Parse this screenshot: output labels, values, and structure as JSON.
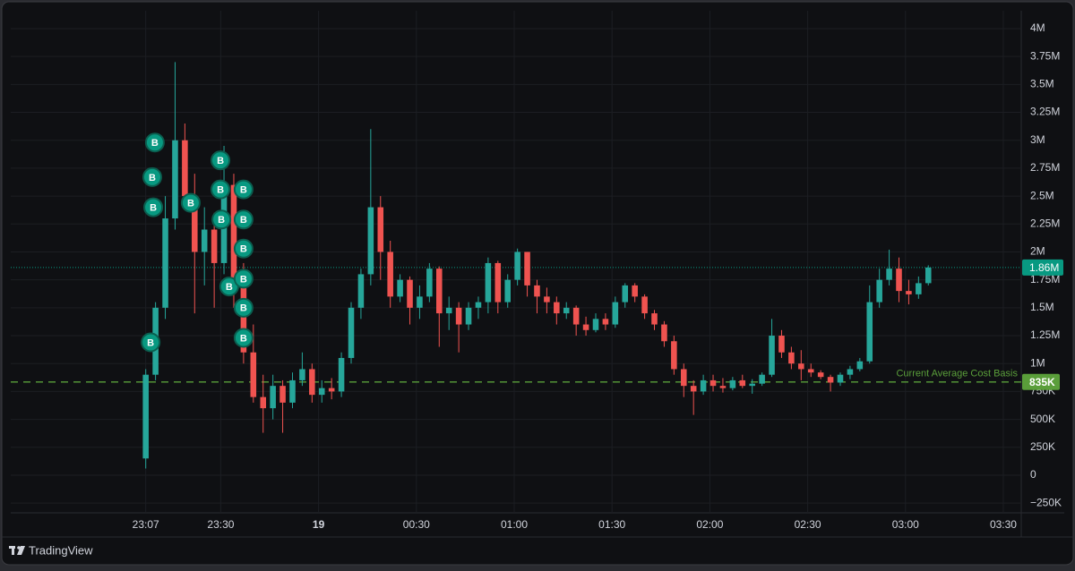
{
  "chart_data": {
    "type": "candlestick",
    "brand": "TradingView",
    "up_color": "#26a69a",
    "down_color": "#ef5350",
    "grid": true,
    "xlim": [
      1345.6,
      1655.5
    ],
    "ylim": [
      -337000,
      4096000
    ],
    "xticks": [
      {
        "value": 1387,
        "label": "23:07"
      },
      {
        "value": 1410,
        "label": "23:30"
      },
      {
        "value": 1440,
        "label": "19",
        "bold": true
      },
      {
        "value": 1470,
        "label": "00:30"
      },
      {
        "value": 1500,
        "label": "01:00"
      },
      {
        "value": 1530,
        "label": "01:30"
      },
      {
        "value": 1560,
        "label": "02:00"
      },
      {
        "value": 1590,
        "label": "02:30"
      },
      {
        "value": 1620,
        "label": "03:00"
      },
      {
        "value": 1650,
        "label": "03:30"
      }
    ],
    "yticks": [
      {
        "value": 4000000,
        "label": "4M"
      },
      {
        "value": 3750000,
        "label": "3.75M"
      },
      {
        "value": 3500000,
        "label": "3.5M"
      },
      {
        "value": 3250000,
        "label": "3.25M"
      },
      {
        "value": 3000000,
        "label": "3M"
      },
      {
        "value": 2750000,
        "label": "2.75M"
      },
      {
        "value": 2500000,
        "label": "2.5M"
      },
      {
        "value": 2250000,
        "label": "2.25M"
      },
      {
        "value": 2000000,
        "label": "2M"
      },
      {
        "value": 1750000,
        "label": "1.75M"
      },
      {
        "value": 1500000,
        "label": "1.5M"
      },
      {
        "value": 1250000,
        "label": "1.25M"
      },
      {
        "value": 1000000,
        "label": "1M"
      },
      {
        "value": 750000,
        "label": "750K"
      },
      {
        "value": 500000,
        "label": "500K"
      },
      {
        "value": 250000,
        "label": "250K"
      },
      0,
      {
        "value": -250000,
        "label": "−250K"
      }
    ],
    "x": [
      1387,
      1390,
      1393,
      1396,
      1399,
      1402,
      1405,
      1408,
      1411,
      1414,
      1417,
      1420,
      1423,
      1426,
      1429,
      1432,
      1435,
      1438,
      1441,
      1444,
      1447,
      1450,
      1453,
      1456,
      1459,
      1462,
      1465,
      1468,
      1471,
      1474,
      1477,
      1480,
      1483,
      1486,
      1489,
      1492,
      1495,
      1498,
      1501,
      1504,
      1507,
      1510,
      1513,
      1516,
      1519,
      1522,
      1525,
      1528,
      1531,
      1534,
      1537,
      1540,
      1543,
      1546,
      1549,
      1552,
      1555,
      1558,
      1561,
      1564,
      1567,
      1570,
      1573,
      1576,
      1579,
      1582,
      1585,
      1588,
      1591,
      1594,
      1597,
      1600,
      1603,
      1606,
      1609,
      1612,
      1615,
      1618,
      1621,
      1624,
      1627
    ],
    "open": [
      150000,
      900000,
      1500000,
      2300000,
      3000000,
      2500000,
      2000000,
      2200000,
      1900000,
      2600000,
      1700000,
      1100000,
      700000,
      600000,
      800000,
      650000,
      850000,
      950000,
      720000,
      780000,
      750000,
      1050000,
      1500000,
      1800000,
      2400000,
      2000000,
      1600000,
      1750000,
      1500000,
      1600000,
      1850000,
      1450000,
      1500000,
      1350000,
      1500000,
      1550000,
      1900000,
      1550000,
      1750000,
      2000000,
      1700000,
      1600000,
      1550000,
      1450000,
      1500000,
      1350000,
      1300000,
      1400000,
      1350000,
      1550000,
      1700000,
      1600000,
      1450000,
      1350000,
      1200000,
      950000,
      800000,
      750000,
      850000,
      800000,
      780000,
      850000,
      800000,
      820000,
      900000,
      1250000,
      1100000,
      1000000,
      950000,
      920000,
      880000,
      830000,
      900000,
      950000,
      1020000,
      1550000,
      1750000,
      1850000,
      1650000,
      1620000,
      1720000
    ],
    "high": [
      950000,
      1550000,
      2500000,
      3700000,
      3150000,
      2700000,
      2400000,
      2350000,
      2950000,
      2700000,
      1900000,
      1350000,
      900000,
      900000,
      850000,
      920000,
      1100000,
      1000000,
      850000,
      870000,
      1100000,
      1550000,
      1850000,
      3100000,
      2500000,
      2100000,
      1800000,
      1780000,
      1700000,
      1900000,
      1870000,
      1600000,
      1550000,
      1550000,
      1600000,
      1950000,
      1920000,
      1800000,
      2030000,
      2000000,
      1750000,
      1680000,
      1600000,
      1550000,
      1520000,
      1420000,
      1450000,
      1450000,
      1600000,
      1720000,
      1720000,
      1620000,
      1480000,
      1380000,
      1250000,
      1000000,
      850000,
      900000,
      900000,
      870000,
      880000,
      900000,
      860000,
      920000,
      1400000,
      1300000,
      1150000,
      1120000,
      1000000,
      940000,
      900000,
      920000,
      980000,
      1050000,
      1700000,
      1850000,
      2020000,
      1950000,
      1750000,
      1780000,
      1880000
    ],
    "low": [
      60000,
      850000,
      1400000,
      2200000,
      2400000,
      1450000,
      1700000,
      1500000,
      1800000,
      1500000,
      1000000,
      650000,
      380000,
      500000,
      380000,
      600000,
      800000,
      650000,
      650000,
      680000,
      700000,
      1000000,
      1400000,
      1700000,
      1750000,
      1500000,
      1550000,
      1350000,
      1400000,
      1550000,
      1150000,
      1300000,
      1100000,
      1300000,
      1400000,
      1450000,
      1450000,
      1500000,
      1700000,
      1600000,
      1450000,
      1450000,
      1350000,
      1400000,
      1250000,
      1250000,
      1280000,
      1300000,
      1320000,
      1500000,
      1550000,
      1400000,
      1300000,
      1150000,
      900000,
      700000,
      540000,
      720000,
      750000,
      740000,
      760000,
      780000,
      730000,
      800000,
      880000,
      1050000,
      950000,
      850000,
      880000,
      860000,
      750000,
      800000,
      860000,
      930000,
      1000000,
      1500000,
      1700000,
      1550000,
      1530000,
      1580000,
      1700000
    ],
    "close": [
      900000,
      1500000,
      2300000,
      3000000,
      2500000,
      2000000,
      2200000,
      1900000,
      2600000,
      1700000,
      1100000,
      700000,
      600000,
      800000,
      650000,
      850000,
      950000,
      720000,
      780000,
      750000,
      1050000,
      1500000,
      1800000,
      2400000,
      2000000,
      1600000,
      1750000,
      1500000,
      1600000,
      1850000,
      1450000,
      1500000,
      1350000,
      1500000,
      1550000,
      1900000,
      1550000,
      1750000,
      2000000,
      1700000,
      1600000,
      1550000,
      1450000,
      1500000,
      1350000,
      1300000,
      1400000,
      1350000,
      1550000,
      1700000,
      1600000,
      1450000,
      1350000,
      1200000,
      950000,
      800000,
      750000,
      850000,
      800000,
      780000,
      850000,
      800000,
      820000,
      900000,
      1250000,
      1100000,
      1000000,
      950000,
      920000,
      880000,
      830000,
      900000,
      950000,
      1020000,
      1550000,
      1750000,
      1850000,
      1650000,
      1620000,
      1720000,
      1860000
    ],
    "markers": {
      "text": "B",
      "color": "#089981",
      "x": [
        1389.8,
        1389.0,
        1389.3,
        1400.8,
        1388.5,
        1409.9,
        1409.9,
        1417.0,
        1410.2,
        1417.0,
        1417.0,
        1412.6,
        1417.0,
        1417.0,
        1417.0
      ],
      "y": [
        2980000,
        2670000,
        2400000,
        2440000,
        1190000,
        2820000,
        2560000,
        2560000,
        2290000,
        2290000,
        2030000,
        1690000,
        1760000,
        1500000,
        1230000
      ]
    },
    "last_price": {
      "value": 1860000,
      "label": "1.86M",
      "color": "#089981"
    },
    "cost_basis": {
      "value": 835000,
      "label": "835K",
      "text": "Current Average Cost Basis",
      "color": "#5a9e3a"
    }
  }
}
